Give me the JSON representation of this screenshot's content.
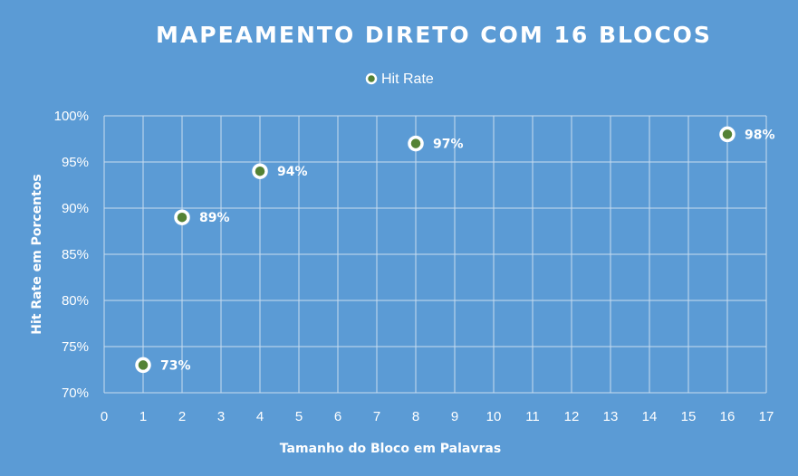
{
  "colors": {
    "background": "#5B9BD5",
    "grid": "#C8DCF0",
    "text": "#FFFFFF",
    "marker_fill": "#548235",
    "marker_stroke": "#FFFFFF"
  },
  "chart_data": {
    "type": "scatter",
    "title": "MAPEAMENTO DIRETO COM 16 BLOCOS",
    "xlabel": "Tamanho do Bloco em Palavras",
    "ylabel": "Hit Rate em Porcentos",
    "xlim": [
      0,
      17
    ],
    "ylim": [
      70,
      100
    ],
    "x_ticks": [
      "0",
      "1",
      "2",
      "3",
      "4",
      "5",
      "6",
      "7",
      "8",
      "9",
      "10",
      "11",
      "12",
      "13",
      "14",
      "15",
      "16",
      "17"
    ],
    "y_ticks": [
      "70%",
      "75%",
      "80%",
      "85%",
      "90%",
      "95%",
      "100%"
    ],
    "grid": true,
    "legend_position": "top-center",
    "series": [
      {
        "name": "Hit Rate",
        "points": [
          {
            "x": 1,
            "y": 73,
            "label": "73%"
          },
          {
            "x": 2,
            "y": 89,
            "label": "89%"
          },
          {
            "x": 4,
            "y": 94,
            "label": "94%"
          },
          {
            "x": 8,
            "y": 97,
            "label": "97%"
          },
          {
            "x": 16,
            "y": 98,
            "label": "98%"
          }
        ]
      }
    ]
  }
}
